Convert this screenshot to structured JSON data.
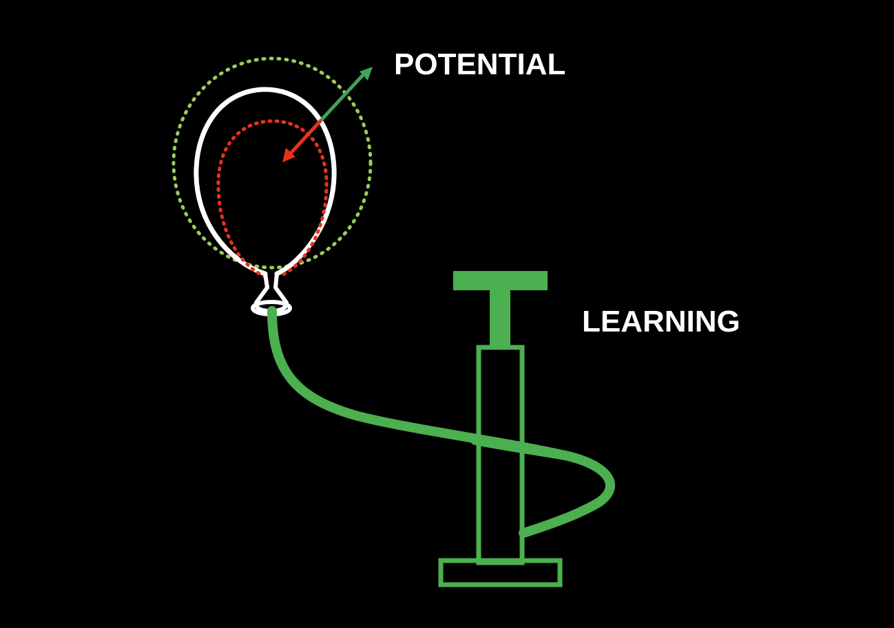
{
  "labels": {
    "potential": "POTENTIAL",
    "learning": "LEARNING"
  },
  "colors": {
    "background": "#000000",
    "balloon_outline": "#ffffff",
    "expanded_outline": "#9acd5a",
    "contracted_outline": "#e8321e",
    "pump_and_hose": "#4caf50",
    "expand_arrow": "#3fa35a",
    "contract_arrow": "#e8321e",
    "text": "#ffffff"
  },
  "icons": {
    "balloon": "balloon-icon",
    "pump": "air-pump-icon",
    "hose": "hose-icon"
  }
}
